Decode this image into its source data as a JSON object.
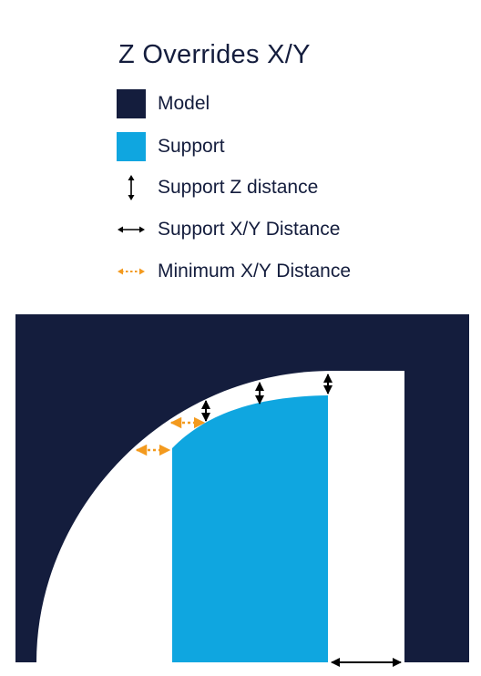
{
  "title": "Z Overrides X/Y",
  "legend": [
    {
      "label": "Model",
      "icon": "model-swatch-icon",
      "color": "#141d3d"
    },
    {
      "label": "Support",
      "icon": "support-swatch-icon",
      "color": "#0fa6e0"
    },
    {
      "label": "Support Z distance",
      "icon": "vertical-double-arrow-icon",
      "color": "#000000"
    },
    {
      "label": "Support X/Y Distance",
      "icon": "horizontal-double-arrow-icon",
      "color": "#000000"
    },
    {
      "label": "Minimum X/Y Distance",
      "icon": "dashed-double-arrow-icon",
      "color": "#f39a1e"
    }
  ],
  "colors": {
    "model": "#141d3d",
    "support": "#0fa6e0",
    "distance_arrow": "#000000",
    "minimum_arrow": "#f39a1e",
    "background": "#ffffff"
  }
}
